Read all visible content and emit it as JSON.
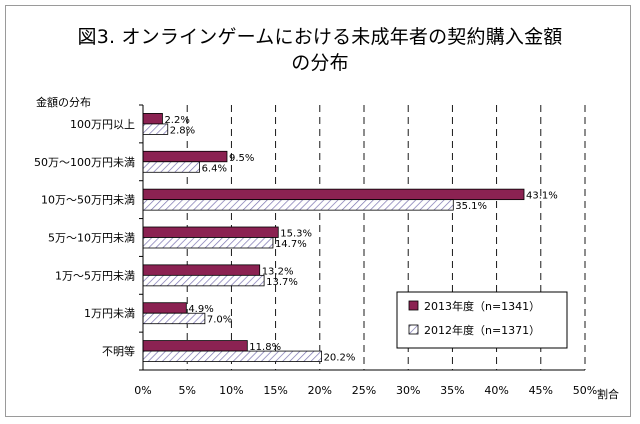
{
  "title_lines": [
    "図3. オンラインゲームにおける未成年者の契約購入金額",
    "の分布"
  ],
  "chart_data": {
    "type": "bar",
    "orientation": "horizontal",
    "title": "図3. オンラインゲームにおける未成年者の契約購入金額の分布",
    "ylabel": "金額の分布",
    "xlabel": "割合",
    "categories": [
      "100万円以上",
      "50万～100万円未満",
      "10万～50万円未満",
      "5万～10万円未満",
      "1万～5万円未満",
      "1万円未満",
      "不明等"
    ],
    "series": [
      {
        "name": "2013年度（n=1341）",
        "values": [
          2.2,
          9.5,
          43.1,
          15.3,
          13.2,
          4.9,
          11.8
        ],
        "labels": [
          "2.2%",
          "9.5%",
          "43.1%",
          "15.3%",
          "13.2%",
          "4.9%",
          "11.8%"
        ],
        "color": "#8b2252"
      },
      {
        "name": "2012年度（n=1371）",
        "values": [
          2.8,
          6.4,
          35.1,
          14.7,
          13.7,
          7.0,
          20.2
        ],
        "labels": [
          "2.8%",
          "6.4%",
          "35.1%",
          "14.7%",
          "13.7%",
          "7.0%",
          "20.2%"
        ],
        "color": "#ffffff",
        "pattern": "diagonal-hatch"
      }
    ],
    "xticks": [
      "0%",
      "5%",
      "10%",
      "15%",
      "20%",
      "25%",
      "30%",
      "35%",
      "40%",
      "45%",
      "50%"
    ],
    "xlim": [
      0,
      50
    ],
    "grid": "vertical-dashed",
    "legend": "bottom-right"
  }
}
